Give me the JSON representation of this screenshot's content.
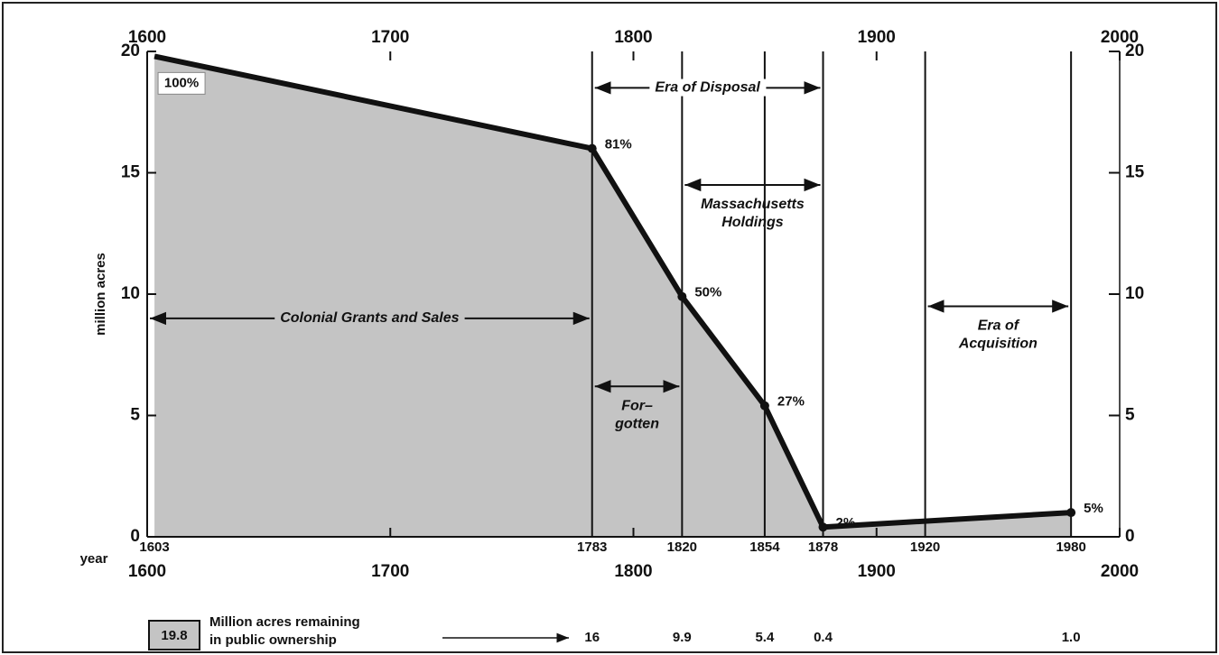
{
  "chart_data": {
    "type": "area",
    "x": [
      1603,
      1783,
      1820,
      1854,
      1878,
      1980
    ],
    "values": [
      19.8,
      16,
      9.9,
      5.4,
      0.4,
      1.0
    ],
    "value_labels": [
      "19.8",
      "16",
      "9.9",
      "5.4",
      "0.4",
      "1.0"
    ],
    "percent_labels": [
      "100%",
      "81%",
      "50%",
      "27%",
      "2%",
      "5%"
    ],
    "xlim": [
      1600,
      2000
    ],
    "xticks": [
      1600,
      1700,
      1800,
      1900,
      2000
    ],
    "ylim": [
      0,
      20
    ],
    "yticks": [
      0,
      5,
      10,
      15,
      20
    ],
    "ylabel": "million acres",
    "xlabel": "year",
    "year_markers": [
      1603,
      1783,
      1820,
      1854,
      1878,
      1920,
      1980
    ],
    "spans": [
      {
        "label": [
          "Colonial Grants and Sales"
        ],
        "from": 1600,
        "to": 1783
      },
      {
        "label": [
          "Era of Disposal"
        ],
        "from": 1783,
        "to": 1878
      },
      {
        "label": [
          "Massachusetts",
          "Holdings"
        ],
        "from": 1820,
        "to": 1878
      },
      {
        "label": [
          "For–",
          "gotten"
        ],
        "from": 1783,
        "to": 1820
      },
      {
        "label": [
          "Era of",
          "Acquisition"
        ],
        "from": 1920,
        "to": 1980
      }
    ],
    "legend_label": [
      "Million acres remaining",
      "in public ownership"
    ],
    "color": "#c4c4c4"
  }
}
